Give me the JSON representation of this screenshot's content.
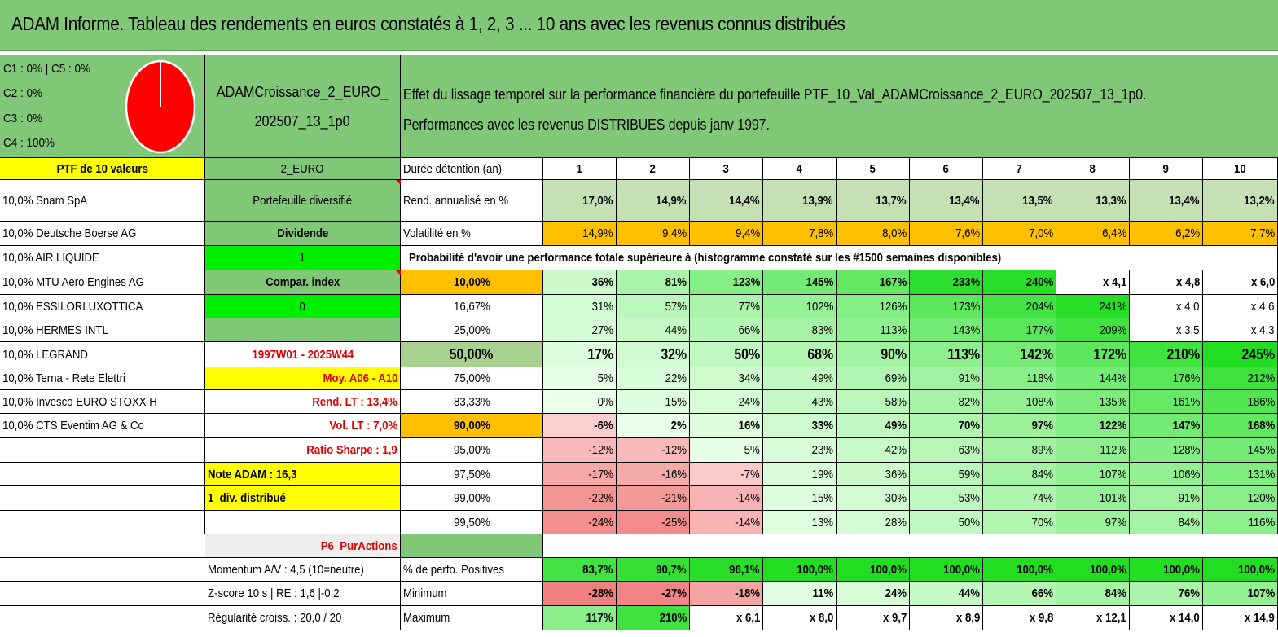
{
  "title": "ADAM Informe. Tableau des rendements en euros constatés à 1, 2, 3 ... 10 ans avec les revenus connus distribués",
  "legend": [
    "C1 : 0% | C5 : 0%",
    "C2 : 0%",
    "C3 : 0%",
    "C4 : 100%"
  ],
  "portfolio": {
    "name_line1": "ADAMCroissance_2_EURO_",
    "name_line2": "202507_13_1p0",
    "desc_line1": "Effet du lissage temporel sur la performance financière du portefeuille PTF_10_Val_ADAMCroissance_2_EURO_202507_13_1p0.",
    "desc_line2": "Performances avec les revenus DISTRIBUES depuis janv 1997."
  },
  "colors": {
    "header_green": "#80c878",
    "yellow": "#ffff00",
    "orange": "#ffc000",
    "bright_green": "#00ee00",
    "red": "#e00000",
    "pie_red": "#ff0000"
  },
  "ptf_header": "PTF de 10 valeurs",
  "holdings": [
    "10,0% Snam SpA",
    "10,0% Deutsche Boerse AG",
    "10,0% AIR LIQUIDE",
    "10,0% MTU Aero Engines AG",
    "10,0% ESSILORLUXOTTICA",
    "10,0% HERMES INTL",
    "10,0% LEGRAND",
    "10,0% Terna - Rete Elettri",
    "10,0% Invesco EURO STOXX H",
    "10,0% CTS Eventim AG & Co"
  ],
  "mid_column": {
    "currency": "2_EURO",
    "type": "Portefeuille diversifié",
    "category": "Dividende",
    "category_value": "1",
    "compar": "Compar. index",
    "compar_value": "0",
    "blank": "",
    "period": "1997W01 - 2025W44",
    "moy": "Moy. A06 - A10",
    "rend_lt": "Rend. LT : 13,4%",
    "vol_lt": "Vol. LT : 7,0%",
    "sharpe": "Ratio Sharpe : 1,9",
    "note": "Note ADAM : 16,3",
    "div": "1_div. distribué",
    "p6": "P6_PurActions",
    "momentum": "Momentum A/V : 4,5 (10=neutre)",
    "zscore": "Z-score 10 s | RE : 1,6 |-0,2",
    "regularite": "Régularité croiss. : 20,0 / 20"
  },
  "table": {
    "duree_label": "Durée détention (an)",
    "years": [
      "1",
      "2",
      "3",
      "4",
      "5",
      "6",
      "7",
      "8",
      "9",
      "10"
    ],
    "rend_label": "Rend. annualisé en %",
    "rend": [
      "17,0%",
      "14,9%",
      "14,4%",
      "13,9%",
      "13,7%",
      "13,4%",
      "13,5%",
      "13,3%",
      "13,4%",
      "13,2%"
    ],
    "vol_label": "Volatilité en %",
    "vol": [
      "14,9%",
      "9,4%",
      "9,4%",
      "7,8%",
      "8,0%",
      "7,6%",
      "7,0%",
      "6,4%",
      "6,2%",
      "7,7%"
    ],
    "prob_title": "Probabilité d'avoir une performance totale supérieure à (histogramme constaté sur les #1500 semaines disponibles)",
    "prob_rows": [
      {
        "p": "10,00%",
        "v": [
          "36%",
          "81%",
          "123%",
          "145%",
          "167%",
          "233%",
          "240%",
          "x 4,1",
          "x 4,8",
          "x 6,0"
        ]
      },
      {
        "p": "16,67%",
        "v": [
          "31%",
          "57%",
          "77%",
          "102%",
          "126%",
          "173%",
          "204%",
          "241%",
          "x 4,0",
          "x 4,6"
        ]
      },
      {
        "p": "25,00%",
        "v": [
          "27%",
          "44%",
          "66%",
          "83%",
          "113%",
          "143%",
          "177%",
          "209%",
          "x 3,5",
          "x 4,3"
        ]
      },
      {
        "p": "50,00%",
        "v": [
          "17%",
          "32%",
          "50%",
          "68%",
          "90%",
          "113%",
          "142%",
          "172%",
          "210%",
          "245%"
        ]
      },
      {
        "p": "75,00%",
        "v": [
          "5%",
          "22%",
          "34%",
          "49%",
          "69%",
          "91%",
          "118%",
          "144%",
          "176%",
          "212%"
        ]
      },
      {
        "p": "83,33%",
        "v": [
          "0%",
          "15%",
          "24%",
          "43%",
          "58%",
          "82%",
          "108%",
          "135%",
          "161%",
          "186%"
        ]
      },
      {
        "p": "90,00%",
        "v": [
          "-6%",
          "2%",
          "16%",
          "33%",
          "49%",
          "70%",
          "97%",
          "122%",
          "147%",
          "168%"
        ]
      },
      {
        "p": "95,00%",
        "v": [
          "-12%",
          "-12%",
          "5%",
          "23%",
          "42%",
          "63%",
          "89%",
          "112%",
          "128%",
          "145%"
        ]
      },
      {
        "p": "97,50%",
        "v": [
          "-17%",
          "-16%",
          "-7%",
          "19%",
          "36%",
          "59%",
          "84%",
          "107%",
          "106%",
          "131%"
        ]
      },
      {
        "p": "99,00%",
        "v": [
          "-22%",
          "-21%",
          "-14%",
          "15%",
          "30%",
          "53%",
          "74%",
          "101%",
          "91%",
          "120%"
        ]
      },
      {
        "p": "99,50%",
        "v": [
          "-24%",
          "-25%",
          "-14%",
          "13%",
          "28%",
          "50%",
          "70%",
          "97%",
          "84%",
          "116%"
        ]
      }
    ],
    "pos_label": "% de perfo. Positives",
    "pos": [
      "83,7%",
      "90,7%",
      "96,1%",
      "100,0%",
      "100,0%",
      "100,0%",
      "100,0%",
      "100,0%",
      "100,0%",
      "100,0%"
    ],
    "min_label": "Minimum",
    "min": [
      "-28%",
      "-27%",
      "-18%",
      "11%",
      "24%",
      "44%",
      "66%",
      "84%",
      "76%",
      "107%"
    ],
    "max_label": "Maximum",
    "max": [
      "117%",
      "210%",
      "x 6,1",
      "x 8,0",
      "x 9,7",
      "x 8,9",
      "x 9,8",
      "x 12,1",
      "x 14,0",
      "x 14,9"
    ]
  }
}
